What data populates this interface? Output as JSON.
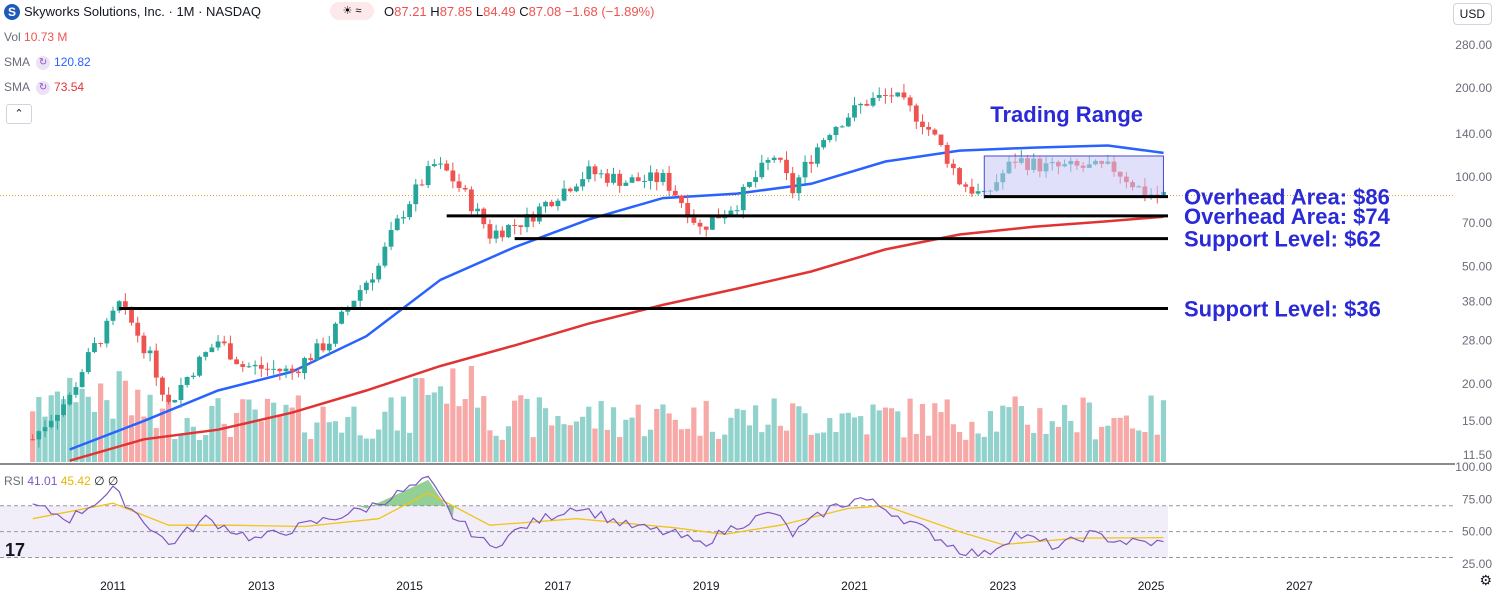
{
  "header": {
    "symbol_title": "Skyworks Solutions, Inc. · 1M · NASDAQ",
    "o_label": "O",
    "o_value": "87.21",
    "h_label": "H",
    "h_value": "87.85",
    "l_label": "L",
    "l_value": "84.49",
    "c_label": "C",
    "c_value": "87.08",
    "change": "−1.68 (−1.89%)",
    "currency": "USD"
  },
  "indicators": {
    "vol_label": "Vol",
    "vol_value": "10.73 M",
    "sma1_label": "SMA",
    "sma1_value": "120.82",
    "sma2_label": "SMA",
    "sma2_value": "73.54",
    "rsi_label": "RSI",
    "rsi_value": "41.01",
    "rsi_ma_value": "45.42",
    "rsi_extra": "∅ ∅"
  },
  "colors": {
    "up": "#26a69a",
    "down": "#ef5350",
    "vol_up": "#92d2cc",
    "vol_down": "#f7a9a7",
    "sma_fast": "#2962ff",
    "sma_slow": "#e03434",
    "rsi": "#7e57c2",
    "rsi_ma": "#f0c419",
    "annotation": "#2a2ad8",
    "range_fill": "#c9c6f7"
  },
  "chart_data": {
    "type": "candlestick",
    "title": "Skyworks Solutions, Inc. · 1M · NASDAQ",
    "price_scale": "log",
    "ylim": [
      11.5,
      280
    ],
    "y_ticks": [
      "280.00",
      "200.00",
      "140.00",
      "100.00",
      "70.00",
      "50.00",
      "38.00",
      "28.00",
      "20.00",
      "15.00",
      "11.50"
    ],
    "x_ticks": [
      "2011",
      "2013",
      "2015",
      "2017",
      "2019",
      "2021",
      "2023",
      "2025",
      "2027"
    ],
    "rsi_ticks": [
      "100.00",
      "75.00",
      "50.00",
      "25.00"
    ],
    "rsi_levels": [
      70,
      50,
      30
    ],
    "last_close": 87.08,
    "price_path": [
      [
        "2009-12",
        13
      ],
      [
        "2010-06",
        18
      ],
      [
        "2010-12",
        31
      ],
      [
        "2011-02",
        37
      ],
      [
        "2011-10",
        17
      ],
      [
        "2012-06",
        28
      ],
      [
        "2012-10",
        23
      ],
      [
        "2013-06",
        22
      ],
      [
        "2013-12",
        28
      ],
      [
        "2014-08",
        50
      ],
      [
        "2015-05",
        110
      ],
      [
        "2015-07",
        104
      ],
      [
        "2016-02",
        64
      ],
      [
        "2016-08",
        72
      ],
      [
        "2017-06",
        104
      ],
      [
        "2017-12",
        97
      ],
      [
        "2018-06",
        99
      ],
      [
        "2018-12",
        67
      ],
      [
        "2019-06",
        82
      ],
      [
        "2019-12",
        118
      ],
      [
        "2020-03",
        90
      ],
      [
        "2020-09",
        145
      ],
      [
        "2021-03",
        180
      ],
      [
        "2021-07",
        190
      ],
      [
        "2021-12",
        155
      ],
      [
        "2022-06",
        97
      ],
      [
        "2022-10",
        85
      ],
      [
        "2023-03",
        115
      ],
      [
        "2023-08",
        108
      ],
      [
        "2023-12",
        108
      ],
      [
        "2024-07",
        107
      ],
      [
        "2024-12",
        88
      ],
      [
        "2025-03",
        87
      ]
    ],
    "sma_fast_path": [
      [
        "2010-06",
        12
      ],
      [
        "2011-06",
        15
      ],
      [
        "2012-06",
        19
      ],
      [
        "2013-06",
        22
      ],
      [
        "2014-06",
        29
      ],
      [
        "2015-06",
        45
      ],
      [
        "2016-06",
        58
      ],
      [
        "2017-06",
        72
      ],
      [
        "2018-06",
        85
      ],
      [
        "2019-06",
        88
      ],
      [
        "2020-06",
        95
      ],
      [
        "2021-06",
        113
      ],
      [
        "2022-06",
        123
      ],
      [
        "2023-06",
        126
      ],
      [
        "2024-06",
        128
      ],
      [
        "2025-03",
        120.82
      ]
    ],
    "sma_slow_path": [
      [
        "2010-06",
        11
      ],
      [
        "2011-06",
        13
      ],
      [
        "2012-06",
        14
      ],
      [
        "2013-06",
        16
      ],
      [
        "2014-06",
        19
      ],
      [
        "2015-06",
        23
      ],
      [
        "2016-06",
        27
      ],
      [
        "2017-06",
        32
      ],
      [
        "2018-06",
        37
      ],
      [
        "2019-06",
        42
      ],
      [
        "2020-06",
        48
      ],
      [
        "2021-06",
        57
      ],
      [
        "2022-06",
        64
      ],
      [
        "2023-06",
        68
      ],
      [
        "2024-06",
        71
      ],
      [
        "2025-03",
        73.54
      ]
    ],
    "rsi_path": [
      [
        "2009-12",
        70
      ],
      [
        "2010-06",
        60
      ],
      [
        "2011-01",
        82
      ],
      [
        "2011-10",
        40
      ],
      [
        "2012-04",
        60
      ],
      [
        "2012-12",
        44
      ],
      [
        "2013-06",
        52
      ],
      [
        "2014-06",
        68
      ],
      [
        "2015-04",
        90
      ],
      [
        "2015-08",
        62
      ],
      [
        "2016-02",
        38
      ],
      [
        "2016-08",
        55
      ],
      [
        "2017-04",
        70
      ],
      [
        "2017-12",
        55
      ],
      [
        "2018-08",
        48
      ],
      [
        "2018-12",
        40
      ],
      [
        "2019-06",
        55
      ],
      [
        "2019-12",
        65
      ],
      [
        "2020-03",
        48
      ],
      [
        "2020-09",
        68
      ],
      [
        "2021-02",
        76
      ],
      [
        "2021-06",
        68
      ],
      [
        "2021-12",
        52
      ],
      [
        "2022-06",
        36
      ],
      [
        "2022-10",
        32
      ],
      [
        "2023-03",
        48
      ],
      [
        "2023-10",
        38
      ],
      [
        "2024-03",
        48
      ],
      [
        "2024-09",
        42
      ],
      [
        "2025-03",
        41.01
      ]
    ],
    "rsi_ma_path": [
      [
        "2009-12",
        60
      ],
      [
        "2011-01",
        72
      ],
      [
        "2011-10",
        55
      ],
      [
        "2012-08",
        55
      ],
      [
        "2013-08",
        54
      ],
      [
        "2014-08",
        60
      ],
      [
        "2015-04",
        80
      ],
      [
        "2016-02",
        55
      ],
      [
        "2017-04",
        60
      ],
      [
        "2018-08",
        53
      ],
      [
        "2019-04",
        48
      ],
      [
        "2020-01",
        55
      ],
      [
        "2020-12",
        68
      ],
      [
        "2021-06",
        70
      ],
      [
        "2022-06",
        50
      ],
      [
        "2023-01",
        40
      ],
      [
        "2024-01",
        45
      ],
      [
        "2025-03",
        45.42
      ]
    ],
    "volume_up_down": "mixed",
    "horizontal_levels": [
      {
        "label": "Overhead Area: $86",
        "value": 86,
        "from": "2022-10",
        "to": "2025-03"
      },
      {
        "label": "Overhead Area: $74",
        "value": 74,
        "from": "2015-07",
        "to": "2025-03"
      },
      {
        "label": "Support Level: $62",
        "value": 62,
        "from": "2016-06",
        "to": "2025-03"
      },
      {
        "label": "Support Level: $36",
        "value": 36,
        "from": "2011-02",
        "to": "2025-03"
      }
    ],
    "trading_range": {
      "label": "Trading Range",
      "low": 86,
      "high": 118,
      "from": "2022-10",
      "to": "2025-03"
    }
  }
}
